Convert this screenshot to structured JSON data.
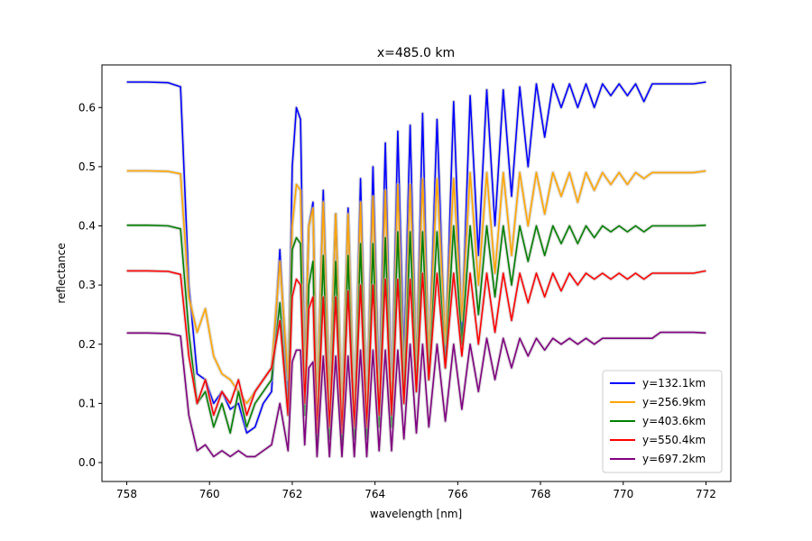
{
  "chart_data": {
    "type": "line",
    "title": "x=485.0 km",
    "xlabel": "wavelength [nm]",
    "ylabel": "reflectance",
    "xlim": [
      757.4,
      772.6
    ],
    "ylim": [
      -0.032,
      0.672
    ],
    "xticks": [
      758,
      760,
      762,
      764,
      766,
      768,
      770,
      772
    ],
    "yticks": [
      0.0,
      0.1,
      0.2,
      0.3,
      0.4,
      0.5,
      0.6
    ],
    "legend_position": "lower-right",
    "grid": false,
    "x": [
      758.0,
      758.5,
      759.0,
      759.3,
      759.5,
      759.7,
      759.9,
      760.1,
      760.3,
      760.5,
      760.7,
      760.9,
      761.1,
      761.3,
      761.5,
      761.7,
      761.9,
      762.0,
      762.1,
      762.2,
      762.3,
      762.4,
      762.5,
      762.6,
      762.75,
      762.9,
      763.05,
      763.2,
      763.35,
      763.5,
      763.65,
      763.8,
      763.95,
      764.1,
      764.25,
      764.4,
      764.55,
      764.7,
      764.85,
      765.0,
      765.15,
      765.3,
      765.5,
      765.7,
      765.9,
      766.1,
      766.3,
      766.5,
      766.7,
      766.9,
      767.1,
      767.3,
      767.5,
      767.7,
      767.9,
      768.1,
      768.3,
      768.5,
      768.7,
      768.9,
      769.1,
      769.3,
      769.5,
      769.7,
      769.9,
      770.1,
      770.3,
      770.5,
      770.7,
      770.9,
      771.1,
      771.3,
      771.5,
      771.7,
      772.0
    ],
    "series": [
      {
        "name": "y=132.1km",
        "color": "#0000ff",
        "values": [
          0.643,
          0.643,
          0.642,
          0.635,
          0.3,
          0.15,
          0.14,
          0.1,
          0.12,
          0.09,
          0.1,
          0.05,
          0.06,
          0.1,
          0.12,
          0.36,
          0.1,
          0.5,
          0.6,
          0.58,
          0.15,
          0.4,
          0.44,
          0.08,
          0.46,
          0.1,
          0.42,
          0.06,
          0.43,
          0.06,
          0.48,
          0.07,
          0.5,
          0.12,
          0.54,
          0.1,
          0.56,
          0.18,
          0.57,
          0.15,
          0.59,
          0.16,
          0.58,
          0.18,
          0.61,
          0.22,
          0.62,
          0.35,
          0.63,
          0.4,
          0.63,
          0.45,
          0.635,
          0.5,
          0.64,
          0.55,
          0.64,
          0.6,
          0.64,
          0.6,
          0.64,
          0.6,
          0.64,
          0.62,
          0.64,
          0.62,
          0.64,
          0.61,
          0.64,
          0.64,
          0.64,
          0.64,
          0.64,
          0.64,
          0.643
        ]
      },
      {
        "name": "y=256.9km",
        "color": "#ffa500",
        "values": [
          0.493,
          0.493,
          0.492,
          0.488,
          0.28,
          0.22,
          0.26,
          0.18,
          0.15,
          0.14,
          0.12,
          0.1,
          0.12,
          0.14,
          0.16,
          0.34,
          0.14,
          0.4,
          0.47,
          0.46,
          0.14,
          0.4,
          0.43,
          0.1,
          0.44,
          0.1,
          0.42,
          0.08,
          0.42,
          0.08,
          0.44,
          0.08,
          0.45,
          0.1,
          0.46,
          0.1,
          0.47,
          0.14,
          0.47,
          0.16,
          0.48,
          0.18,
          0.48,
          0.2,
          0.48,
          0.24,
          0.49,
          0.3,
          0.49,
          0.32,
          0.49,
          0.35,
          0.49,
          0.4,
          0.49,
          0.42,
          0.49,
          0.45,
          0.49,
          0.44,
          0.49,
          0.46,
          0.49,
          0.47,
          0.49,
          0.47,
          0.49,
          0.48,
          0.49,
          0.49,
          0.49,
          0.49,
          0.49,
          0.49,
          0.493
        ]
      },
      {
        "name": "y=403.6km",
        "color": "#008000",
        "values": [
          0.401,
          0.401,
          0.4,
          0.395,
          0.22,
          0.1,
          0.12,
          0.06,
          0.1,
          0.05,
          0.12,
          0.06,
          0.1,
          0.12,
          0.14,
          0.27,
          0.08,
          0.36,
          0.38,
          0.37,
          0.08,
          0.3,
          0.34,
          0.03,
          0.35,
          0.04,
          0.34,
          0.03,
          0.35,
          0.04,
          0.37,
          0.04,
          0.37,
          0.06,
          0.38,
          0.06,
          0.39,
          0.1,
          0.39,
          0.12,
          0.39,
          0.14,
          0.39,
          0.16,
          0.4,
          0.2,
          0.4,
          0.25,
          0.4,
          0.28,
          0.4,
          0.3,
          0.4,
          0.34,
          0.4,
          0.35,
          0.4,
          0.37,
          0.4,
          0.37,
          0.4,
          0.38,
          0.4,
          0.39,
          0.4,
          0.39,
          0.4,
          0.39,
          0.4,
          0.4,
          0.4,
          0.4,
          0.4,
          0.4,
          0.401
        ]
      },
      {
        "name": "y=550.4km",
        "color": "#ff0000",
        "values": [
          0.324,
          0.324,
          0.323,
          0.318,
          0.18,
          0.1,
          0.14,
          0.08,
          0.12,
          0.1,
          0.14,
          0.08,
          0.12,
          0.14,
          0.16,
          0.24,
          0.08,
          0.28,
          0.31,
          0.3,
          0.1,
          0.26,
          0.28,
          0.05,
          0.28,
          0.06,
          0.28,
          0.05,
          0.29,
          0.06,
          0.3,
          0.06,
          0.3,
          0.08,
          0.31,
          0.08,
          0.31,
          0.1,
          0.31,
          0.12,
          0.32,
          0.14,
          0.32,
          0.16,
          0.32,
          0.18,
          0.32,
          0.2,
          0.32,
          0.22,
          0.32,
          0.24,
          0.32,
          0.27,
          0.32,
          0.28,
          0.32,
          0.29,
          0.32,
          0.3,
          0.32,
          0.31,
          0.32,
          0.31,
          0.32,
          0.31,
          0.32,
          0.31,
          0.32,
          0.32,
          0.32,
          0.32,
          0.32,
          0.32,
          0.324
        ]
      },
      {
        "name": "y=697.2km",
        "color": "#800080",
        "values": [
          0.219,
          0.219,
          0.218,
          0.214,
          0.08,
          0.02,
          0.03,
          0.01,
          0.02,
          0.01,
          0.02,
          0.01,
          0.01,
          0.02,
          0.03,
          0.1,
          0.02,
          0.17,
          0.19,
          0.19,
          0.03,
          0.16,
          0.17,
          0.01,
          0.18,
          0.01,
          0.18,
          0.01,
          0.18,
          0.01,
          0.19,
          0.01,
          0.19,
          0.02,
          0.19,
          0.02,
          0.19,
          0.04,
          0.2,
          0.05,
          0.2,
          0.06,
          0.2,
          0.07,
          0.2,
          0.09,
          0.2,
          0.12,
          0.21,
          0.14,
          0.21,
          0.16,
          0.21,
          0.18,
          0.21,
          0.19,
          0.21,
          0.2,
          0.21,
          0.2,
          0.21,
          0.2,
          0.21,
          0.21,
          0.21,
          0.21,
          0.21,
          0.21,
          0.21,
          0.22,
          0.22,
          0.22,
          0.22,
          0.22,
          0.219
        ]
      }
    ]
  }
}
